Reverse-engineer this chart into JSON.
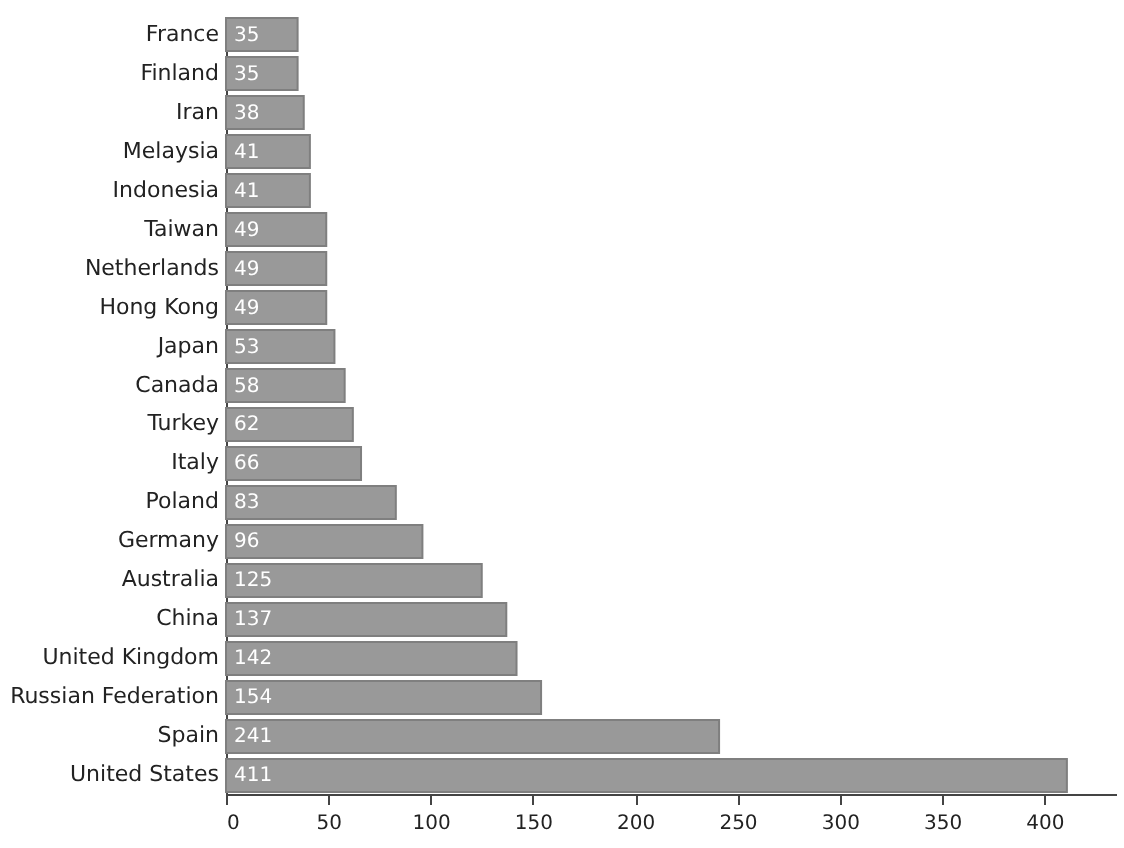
{
  "chart_data": {
    "type": "bar",
    "orientation": "horizontal",
    "categories": [
      "France",
      "Finland",
      "Iran",
      "Melaysia",
      "Indonesia",
      "Taiwan",
      "Netherlands",
      "Hong Kong",
      "Japan",
      "Canada",
      "Turkey",
      "Italy",
      "Poland",
      "Germany",
      "Australia",
      "China",
      "United Kingdom",
      "Russian Federation",
      "Spain",
      "United States"
    ],
    "values": [
      35,
      35,
      38,
      41,
      41,
      49,
      49,
      49,
      53,
      58,
      62,
      66,
      83,
      96,
      125,
      137,
      142,
      154,
      241,
      411
    ],
    "color": "#999999",
    "xlim": [
      0,
      435
    ],
    "xticks": [
      0,
      50,
      100,
      150,
      200,
      250,
      300,
      350,
      400
    ],
    "data_labels": true
  }
}
